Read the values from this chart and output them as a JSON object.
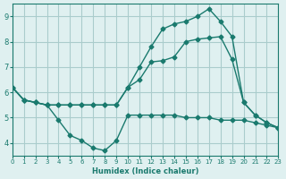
{
  "xlabel": "Humidex (Indice chaleur)",
  "ylabel": "",
  "background_color": "#dff0f0",
  "grid_color": "#aacccc",
  "line_color": "#1a7a6e",
  "xlim": [
    0,
    23
  ],
  "ylim": [
    3.5,
    9.5
  ],
  "xticks": [
    0,
    1,
    2,
    3,
    4,
    5,
    6,
    7,
    8,
    9,
    10,
    11,
    12,
    13,
    14,
    15,
    16,
    17,
    18,
    19,
    20,
    21,
    22,
    23
  ],
  "yticks": [
    4,
    5,
    6,
    7,
    8,
    9
  ],
  "series": [
    {
      "x": [
        0,
        1,
        2,
        3,
        4,
        5,
        6,
        7,
        8,
        9,
        10,
        11,
        12,
        13,
        14,
        15,
        16,
        17,
        18,
        19,
        20,
        21,
        22,
        23
      ],
      "y": [
        6.2,
        5.7,
        5.6,
        5.5,
        4.9,
        4.3,
        4.1,
        3.8,
        3.7,
        4.1,
        5.1,
        5.1,
        5.1,
        5.1,
        5.1,
        5.0,
        5.0,
        5.0,
        4.9,
        4.9,
        4.9,
        4.8,
        4.7,
        4.6
      ]
    },
    {
      "x": [
        0,
        1,
        2,
        3,
        4,
        5,
        6,
        7,
        8,
        9,
        10,
        11,
        12,
        13,
        14,
        15,
        16,
        17,
        18,
        19,
        20,
        21,
        22,
        23
      ],
      "y": [
        6.2,
        5.7,
        5.6,
        5.5,
        5.5,
        5.5,
        5.5,
        5.5,
        5.5,
        5.5,
        6.2,
        6.5,
        7.2,
        7.25,
        7.4,
        8.0,
        8.1,
        8.15,
        8.2,
        7.3,
        5.6,
        5.1,
        4.8,
        4.6
      ]
    },
    {
      "x": [
        0,
        1,
        2,
        3,
        4,
        5,
        6,
        7,
        8,
        9,
        10,
        11,
        12,
        13,
        14,
        15,
        16,
        17,
        18,
        19,
        20,
        21,
        22,
        23
      ],
      "y": [
        6.2,
        5.7,
        5.6,
        5.5,
        5.5,
        5.5,
        5.5,
        5.5,
        5.5,
        5.5,
        6.2,
        7.0,
        7.8,
        8.5,
        8.7,
        8.8,
        9.0,
        9.3,
        8.8,
        8.2,
        5.6,
        5.1,
        4.8,
        4.6
      ]
    },
    {
      "x": [
        0,
        3,
        9,
        10,
        11,
        12,
        13,
        14,
        15,
        16,
        17,
        18,
        19,
        20,
        21,
        22,
        23
      ],
      "y": [
        6.2,
        5.5,
        5.5,
        6.2,
        7.0,
        7.8,
        8.5,
        8.7,
        8.8,
        9.0,
        9.3,
        8.8,
        8.2,
        7.3,
        5.6,
        5.0,
        4.6
      ]
    }
  ]
}
